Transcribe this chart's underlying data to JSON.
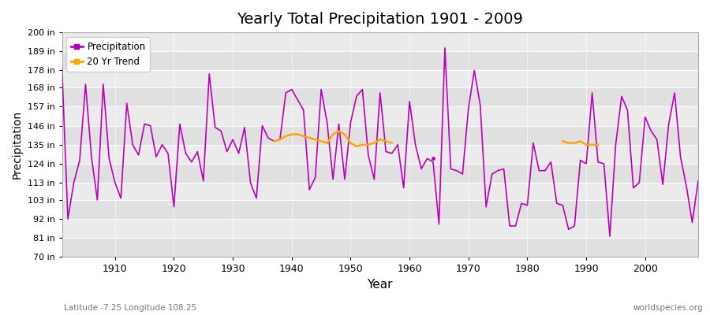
{
  "title": "Yearly Total Precipitation 1901 - 2009",
  "xlabel": "Year",
  "ylabel": "Precipitation",
  "footer_left": "Latitude -7.25 Longitude 108.25",
  "footer_right": "worldspecies.org",
  "legend_entries": [
    "Precipitation",
    "20 Yr Trend"
  ],
  "precip_color": "#bb00bb",
  "trend_color": "#ffa500",
  "fig_bg_color": "#ffffff",
  "plot_bg_color": "#f0f0f0",
  "band_color_dark": "#e0e0e0",
  "band_color_light": "#ebebeb",
  "ylim": [
    70,
    200
  ],
  "yticks": [
    70,
    81,
    92,
    103,
    113,
    124,
    135,
    146,
    157,
    168,
    178,
    189,
    200
  ],
  "ytick_labels": [
    "70 in",
    "81 in",
    "92 in",
    "103 in",
    "113 in",
    "124 in",
    "135 in",
    "146 in",
    "157 in",
    "168 in",
    "178 in",
    "189 in",
    "200 in"
  ],
  "xticks": [
    1910,
    1920,
    1930,
    1940,
    1950,
    1960,
    1970,
    1980,
    1990,
    2000
  ],
  "years": [
    1901,
    1902,
    1903,
    1904,
    1905,
    1906,
    1907,
    1908,
    1909,
    1910,
    1911,
    1912,
    1913,
    1914,
    1915,
    1916,
    1917,
    1918,
    1919,
    1920,
    1921,
    1922,
    1923,
    1924,
    1925,
    1926,
    1927,
    1928,
    1929,
    1930,
    1931,
    1932,
    1933,
    1934,
    1935,
    1936,
    1937,
    1938,
    1939,
    1940,
    1941,
    1942,
    1943,
    1944,
    1945,
    1946,
    1947,
    1948,
    1949,
    1950,
    1951,
    1952,
    1953,
    1954,
    1955,
    1956,
    1957,
    1958,
    1959,
    1960,
    1961,
    1962,
    1963,
    1964,
    1965,
    1966,
    1967,
    1968,
    1969,
    1970,
    1971,
    1972,
    1973,
    1974,
    1975,
    1976,
    1977,
    1978,
    1979,
    1980,
    1981,
    1982,
    1983,
    1984,
    1985,
    1986,
    1987,
    1988,
    1989,
    1990,
    1991,
    1992,
    1993,
    1994,
    1995,
    1996,
    1997,
    1998,
    1999,
    2000,
    2001,
    2002,
    2003,
    2004,
    2005,
    2006,
    2007,
    2008,
    2009
  ],
  "precip": [
    179,
    92,
    113,
    126,
    170,
    128,
    103,
    170,
    127,
    113,
    104,
    159,
    135,
    129,
    147,
    146,
    128,
    135,
    130,
    99,
    147,
    130,
    125,
    131,
    114,
    176,
    145,
    143,
    131,
    138,
    130,
    145,
    113,
    104,
    146,
    139,
    137,
    138,
    165,
    167,
    161,
    155,
    109,
    116,
    167,
    148,
    115,
    147,
    115,
    148,
    163,
    167,
    129,
    115,
    165,
    131,
    130,
    135,
    110,
    160,
    135,
    121,
    127,
    125,
    89,
    191,
    121,
    120,
    118,
    156,
    178,
    158,
    99,
    118,
    120,
    121,
    88,
    88,
    101,
    100,
    136,
    120,
    120,
    125,
    101,
    100,
    86,
    88,
    126,
    124,
    165,
    125,
    124,
    82,
    135,
    163,
    155,
    110,
    113,
    151,
    143,
    138,
    112,
    147,
    165,
    128,
    111,
    90,
    114
  ],
  "trend_seg1_years": [
    1937,
    1938,
    1939,
    1940,
    1941,
    1942,
    1943,
    1944,
    1945,
    1946,
    1947,
    1948,
    1949,
    1950,
    1951,
    1952,
    1953,
    1954,
    1955,
    1956,
    1957
  ],
  "trend_seg1_vals": [
    137,
    138,
    140,
    141,
    141,
    140,
    139,
    138,
    137,
    136,
    141,
    143,
    141,
    136,
    134,
    135,
    135,
    136,
    138,
    137,
    136
  ],
  "trend_seg2_years": [
    1986,
    1987,
    1988,
    1989,
    1990,
    1991,
    1992
  ],
  "trend_seg2_vals": [
    137,
    136,
    136,
    137,
    135,
    135,
    135
  ],
  "isolated_point_year": 1964,
  "isolated_point_val": 127
}
